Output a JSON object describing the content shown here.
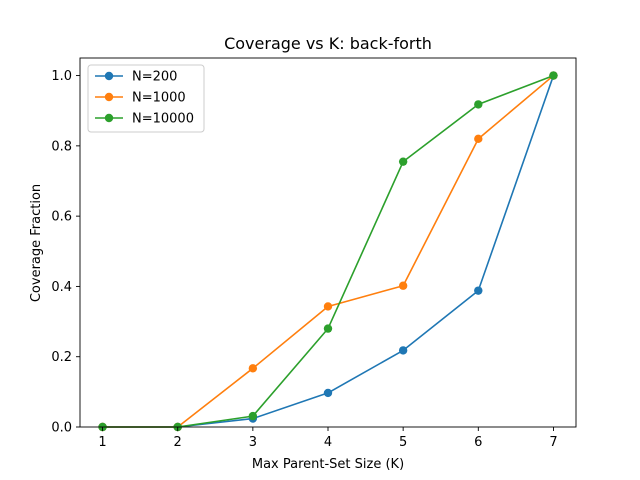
{
  "chart_data": {
    "type": "line",
    "title": "Coverage vs K: back-forth",
    "xlabel": "Max Parent-Set Size (K)",
    "ylabel": "Coverage Fraction",
    "x": [
      1,
      2,
      3,
      4,
      5,
      6,
      7
    ],
    "xlim": [
      0.7,
      7.3
    ],
    "ylim": [
      0,
      1.05
    ],
    "xticks": [
      "1",
      "2",
      "3",
      "4",
      "5",
      "6",
      "7"
    ],
    "yticks": [
      "0.0",
      "0.2",
      "0.4",
      "0.6",
      "0.8",
      "1.0"
    ],
    "grid": false,
    "legend_position": "top-left",
    "series": [
      {
        "name": "N=200",
        "color": "#1f77b4",
        "values": [
          0.0,
          0.0,
          0.024,
          0.097,
          0.218,
          0.388,
          1.0
        ]
      },
      {
        "name": "N=1000",
        "color": "#ff7f0e",
        "values": [
          0.0,
          0.0,
          0.167,
          0.343,
          0.402,
          0.82,
          1.0
        ]
      },
      {
        "name": "N=10000",
        "color": "#2ca02c",
        "values": [
          0.0,
          0.0,
          0.031,
          0.28,
          0.755,
          0.918,
          1.0
        ]
      }
    ]
  }
}
